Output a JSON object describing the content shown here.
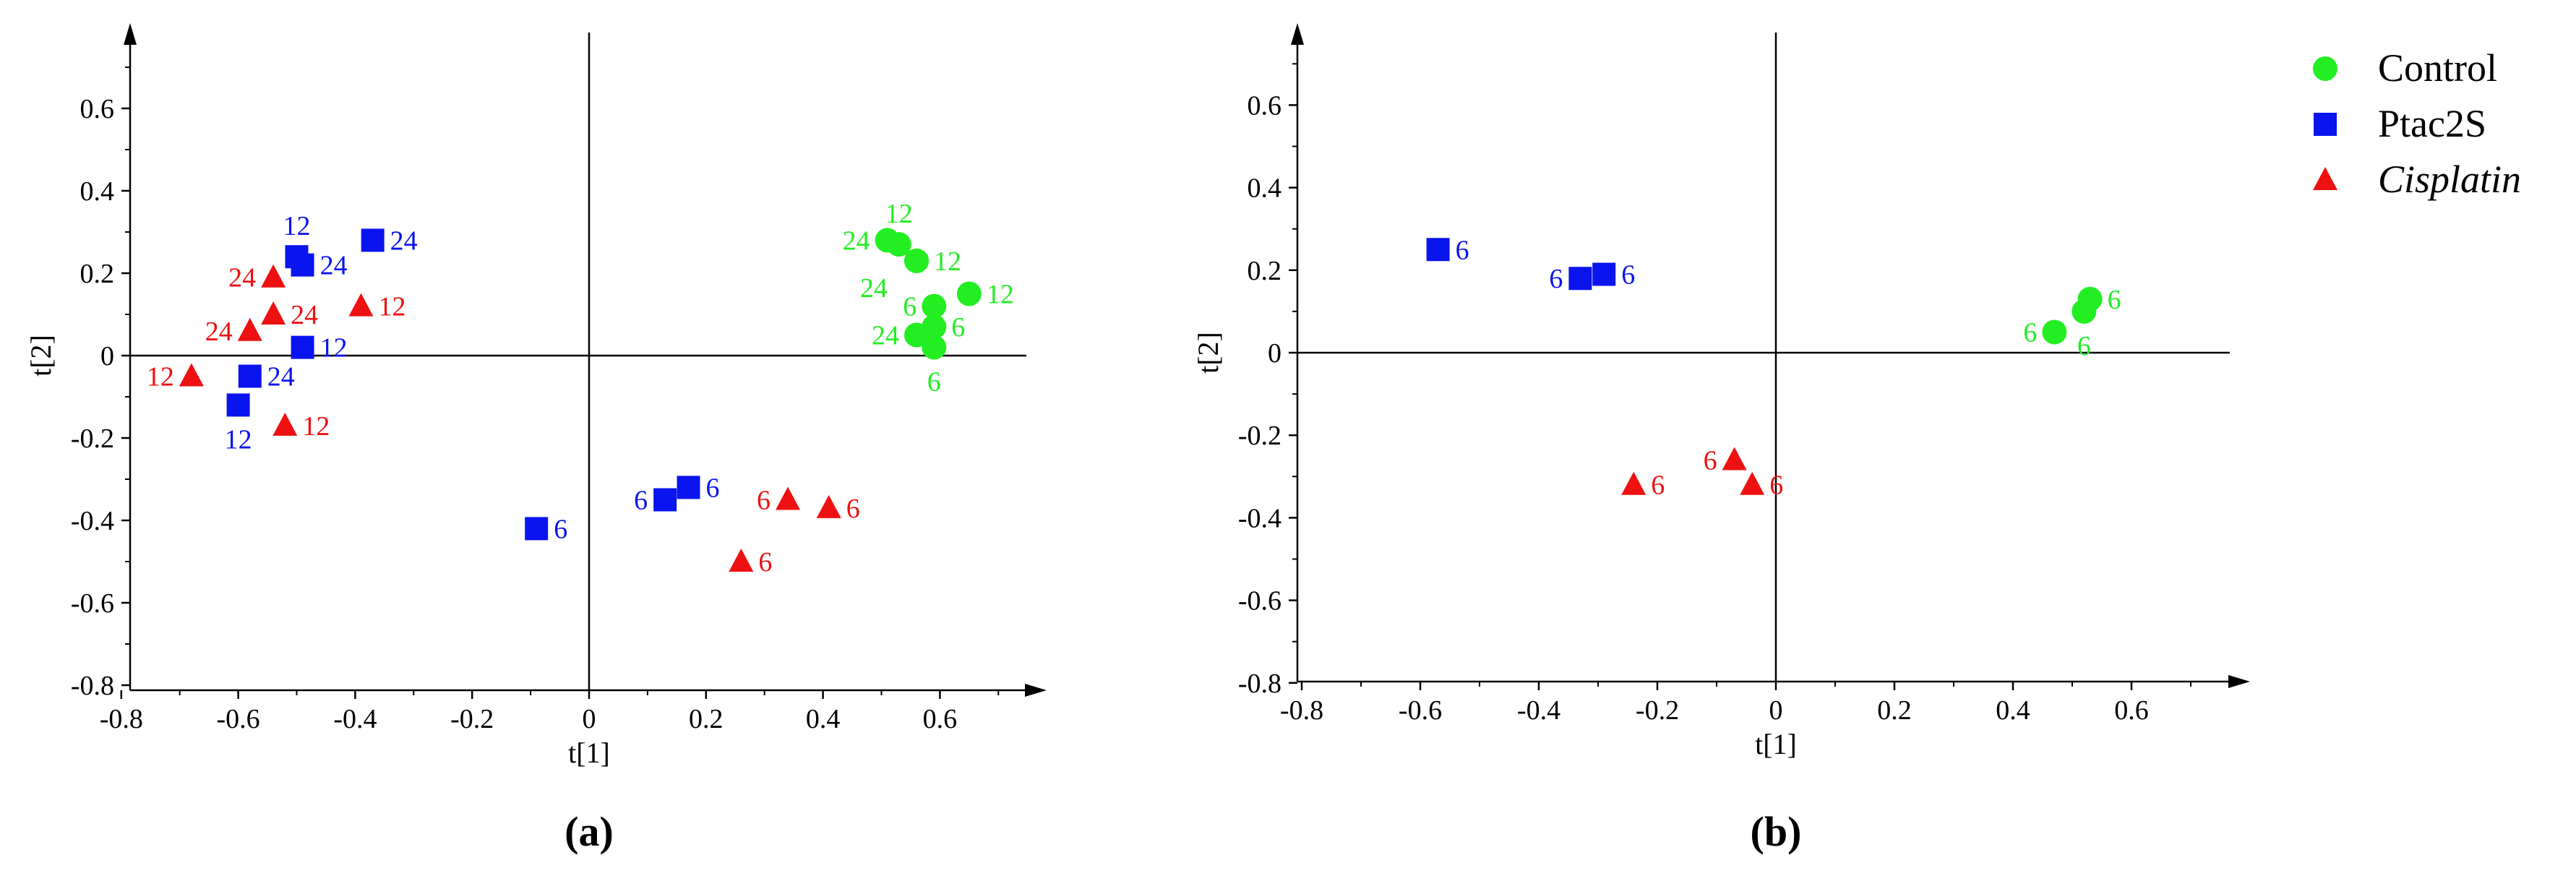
{
  "chart_data": [
    {
      "panel_label": "(a)",
      "type": "scatter",
      "xlabel": "t[1]",
      "ylabel": "t[2]",
      "xlim": [
        -0.8,
        0.8
      ],
      "ylim": [
        -0.8,
        0.75
      ],
      "xticks": [
        "-0.8",
        "-0.6",
        "-0.4",
        "-0.2",
        "0",
        "0.2",
        "0.4",
        "0.6"
      ],
      "yticks": [
        "-0.8",
        "-0.6",
        "-0.4",
        "-0.2",
        "0",
        "0.2",
        "0.4",
        "0.6"
      ],
      "xtick_values": [
        -0.8,
        -0.6,
        -0.4,
        -0.2,
        0,
        0.2,
        0.4,
        0.6
      ],
      "ytick_values": [
        -0.8,
        -0.6,
        -0.4,
        -0.2,
        0,
        0.2,
        0.4,
        0.6
      ],
      "series": [
        {
          "name": "Control",
          "points": [
            {
              "x": 0.51,
              "y": 0.28,
              "label": "24",
              "label_pos": "left"
            },
            {
              "x": 0.53,
              "y": 0.27,
              "label": "12",
              "label_pos": "top"
            },
            {
              "x": 0.56,
              "y": 0.23,
              "label": "12",
              "label_pos": "right"
            },
            {
              "x": 0.56,
              "y": 0.23,
              "label": "24",
              "label_pos": "bottomleft"
            },
            {
              "x": 0.59,
              "y": 0.12,
              "label": "6",
              "label_pos": "left"
            },
            {
              "x": 0.65,
              "y": 0.15,
              "label": "12",
              "label_pos": "right"
            },
            {
              "x": 0.59,
              "y": 0.07,
              "label": "6",
              "label_pos": "right"
            },
            {
              "x": 0.56,
              "y": 0.05,
              "label": "24",
              "label_pos": "left"
            },
            {
              "x": 0.59,
              "y": 0.02,
              "label": "6",
              "label_pos": "below"
            }
          ]
        },
        {
          "name": "Ptac2S",
          "points": [
            {
              "x": -0.5,
              "y": 0.24,
              "label": "12",
              "label_pos": "top"
            },
            {
              "x": -0.49,
              "y": 0.22,
              "label": "24",
              "label_pos": "right"
            },
            {
              "x": -0.37,
              "y": 0.28,
              "label": "24",
              "label_pos": "right"
            },
            {
              "x": -0.49,
              "y": 0.02,
              "label": "12",
              "label_pos": "right"
            },
            {
              "x": -0.58,
              "y": -0.05,
              "label": "24",
              "label_pos": "right"
            },
            {
              "x": -0.6,
              "y": -0.12,
              "label": "12",
              "label_pos": "below"
            },
            {
              "x": -0.09,
              "y": -0.42,
              "label": "6",
              "label_pos": "right"
            },
            {
              "x": 0.13,
              "y": -0.35,
              "label": "6",
              "label_pos": "left"
            },
            {
              "x": 0.17,
              "y": -0.32,
              "label": "6",
              "label_pos": "right"
            }
          ]
        },
        {
          "name": "Cisplatin",
          "points": [
            {
              "x": -0.54,
              "y": 0.19,
              "label": "24",
              "label_pos": "left"
            },
            {
              "x": -0.54,
              "y": 0.1,
              "label": "24",
              "label_pos": "right"
            },
            {
              "x": -0.58,
              "y": 0.06,
              "label": "24",
              "label_pos": "left"
            },
            {
              "x": -0.39,
              "y": 0.12,
              "label": "12",
              "label_pos": "right"
            },
            {
              "x": -0.68,
              "y": -0.05,
              "label": "12",
              "label_pos": "left"
            },
            {
              "x": -0.52,
              "y": -0.17,
              "label": "12",
              "label_pos": "right"
            },
            {
              "x": 0.34,
              "y": -0.35,
              "label": "6",
              "label_pos": "left"
            },
            {
              "x": 0.41,
              "y": -0.37,
              "label": "6",
              "label_pos": "right"
            },
            {
              "x": 0.26,
              "y": -0.5,
              "label": "6",
              "label_pos": "right"
            }
          ]
        }
      ]
    },
    {
      "panel_label": "(b)",
      "type": "scatter",
      "xlabel": "t[1]",
      "ylabel": "t[2]",
      "xlim": [
        -0.8,
        0.8
      ],
      "ylim": [
        -0.8,
        0.75
      ],
      "xticks": [
        "-0.8",
        "-0.6",
        "-0.4",
        "-0.2",
        "0",
        "0.2",
        "0.4",
        "0.6"
      ],
      "yticks": [
        "-0.8",
        "-0.6",
        "-0.4",
        "-0.2",
        "0",
        "0.2",
        "0.4",
        "0.6"
      ],
      "xtick_values": [
        -0.8,
        -0.6,
        -0.4,
        -0.2,
        0,
        0.2,
        0.4,
        0.6
      ],
      "ytick_values": [
        -0.8,
        -0.6,
        -0.4,
        -0.2,
        0,
        0.2,
        0.4,
        0.6
      ],
      "series": [
        {
          "name": "Control",
          "points": [
            {
              "x": 0.47,
              "y": 0.05,
              "label": "6",
              "label_pos": "left"
            },
            {
              "x": 0.52,
              "y": 0.1,
              "label": "6",
              "label_pos": "below"
            },
            {
              "x": 0.53,
              "y": 0.13,
              "label": "6",
              "label_pos": "right"
            }
          ]
        },
        {
          "name": "Ptac2S",
          "points": [
            {
              "x": -0.57,
              "y": 0.25,
              "label": "6",
              "label_pos": "right"
            },
            {
              "x": -0.33,
              "y": 0.18,
              "label": "6",
              "label_pos": "left"
            },
            {
              "x": -0.29,
              "y": 0.19,
              "label": "6",
              "label_pos": "right"
            }
          ]
        },
        {
          "name": "Cisplatin",
          "points": [
            {
              "x": -0.24,
              "y": -0.32,
              "label": "6",
              "label_pos": "right"
            },
            {
              "x": -0.07,
              "y": -0.26,
              "label": "6",
              "label_pos": "left"
            },
            {
              "x": -0.04,
              "y": -0.32,
              "label": "6",
              "label_pos": "right"
            }
          ]
        }
      ]
    }
  ],
  "legend": {
    "position": "top-right",
    "entries": [
      {
        "name": "Control",
        "marker": "circle",
        "color": "#00ee00",
        "italic": false
      },
      {
        "name": "Ptac2S",
        "marker": "square",
        "color": "#0000ee",
        "italic": false
      },
      {
        "name": "Cisplatin",
        "marker": "triangle",
        "color": "#ee0000",
        "italic": true
      }
    ]
  },
  "colors": {
    "Control": "#22ee22",
    "Ptac2S": "#0a14ee",
    "Cisplatin": "#ee1111",
    "axis": "#000000"
  }
}
